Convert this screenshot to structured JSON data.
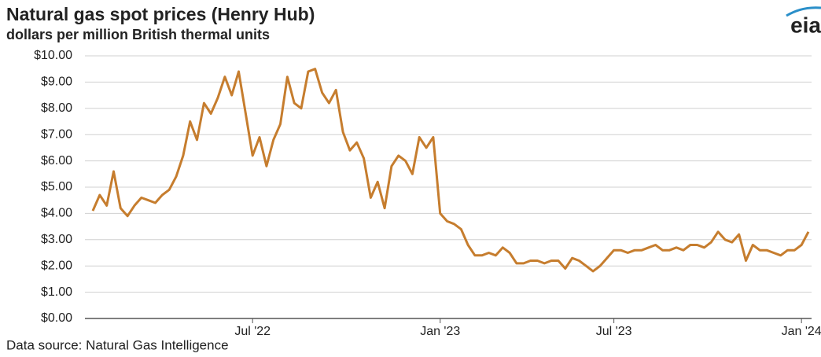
{
  "chart_data": {
    "type": "line",
    "title": "Natural gas spot prices (Henry Hub)",
    "subtitle": "dollars per million British thermal units",
    "source": "Data source: Natural Gas Intelligence",
    "logo": "eia",
    "categories": [
      null,
      null,
      null,
      null,
      null,
      null,
      null,
      null,
      null,
      null,
      null,
      null,
      null,
      null,
      null,
      null,
      null,
      null,
      null,
      null,
      null,
      null,
      null,
      "Jul '22",
      null,
      null,
      null,
      null,
      null,
      null,
      null,
      null,
      null,
      null,
      null,
      null,
      null,
      null,
      null,
      null,
      null,
      null,
      null,
      null,
      null,
      null,
      null,
      null,
      null,
      null,
      "Jan '23",
      null,
      null,
      null,
      null,
      null,
      null,
      null,
      null,
      null,
      null,
      null,
      null,
      null,
      null,
      null,
      null,
      null,
      null,
      null,
      null,
      null,
      null,
      null,
      null,
      "Jul '23",
      null,
      null,
      null,
      null,
      null,
      null,
      null,
      null,
      null,
      null,
      null,
      null,
      null,
      null,
      null,
      null,
      null,
      null,
      null,
      null,
      null,
      null,
      null,
      null,
      null,
      null,
      "Jan '24",
      null
    ],
    "series": [
      {
        "name": "Henry Hub",
        "color": "#c67d2e",
        "values": [
          4.1,
          4.7,
          4.3,
          5.6,
          4.2,
          3.9,
          4.3,
          4.6,
          4.5,
          4.4,
          4.7,
          4.9,
          5.4,
          6.2,
          7.5,
          6.8,
          8.2,
          7.8,
          8.4,
          9.2,
          8.5,
          9.4,
          7.8,
          6.2,
          6.9,
          5.8,
          6.8,
          7.4,
          9.2,
          8.2,
          8.0,
          9.4,
          9.5,
          8.6,
          8.2,
          8.7,
          7.1,
          6.4,
          6.7,
          6.1,
          4.6,
          5.2,
          4.2,
          5.8,
          6.2,
          6.0,
          5.5,
          6.9,
          6.5,
          6.9,
          4.0,
          3.7,
          3.6,
          3.4,
          2.8,
          2.4,
          2.4,
          2.5,
          2.4,
          2.7,
          2.5,
          2.1,
          2.1,
          2.2,
          2.2,
          2.1,
          2.2,
          2.2,
          1.9,
          2.3,
          2.2,
          2.0,
          1.8,
          2.0,
          2.3,
          2.6,
          2.6,
          2.5,
          2.6,
          2.6,
          2.7,
          2.8,
          2.6,
          2.6,
          2.7,
          2.6,
          2.8,
          2.8,
          2.7,
          2.9,
          3.3,
          3.0,
          2.9,
          3.2,
          2.2,
          2.8,
          2.6,
          2.6,
          2.5,
          2.4,
          2.6,
          2.6,
          2.8,
          3.3
        ]
      }
    ],
    "ylim": [
      0,
      10
    ],
    "yticks": [
      {
        "value": 0,
        "label": "$0.00"
      },
      {
        "value": 1,
        "label": "$1.00"
      },
      {
        "value": 2,
        "label": "$2.00"
      },
      {
        "value": 3,
        "label": "$3.00"
      },
      {
        "value": 4,
        "label": "$4.00"
      },
      {
        "value": 5,
        "label": "$5.00"
      },
      {
        "value": 6,
        "label": "$6.00"
      },
      {
        "value": 7,
        "label": "$7.00"
      },
      {
        "value": 8,
        "label": "$8.00"
      },
      {
        "value": 9,
        "label": "$9.00"
      },
      {
        "value": 10,
        "label": "$10.00"
      }
    ],
    "grid": true
  }
}
